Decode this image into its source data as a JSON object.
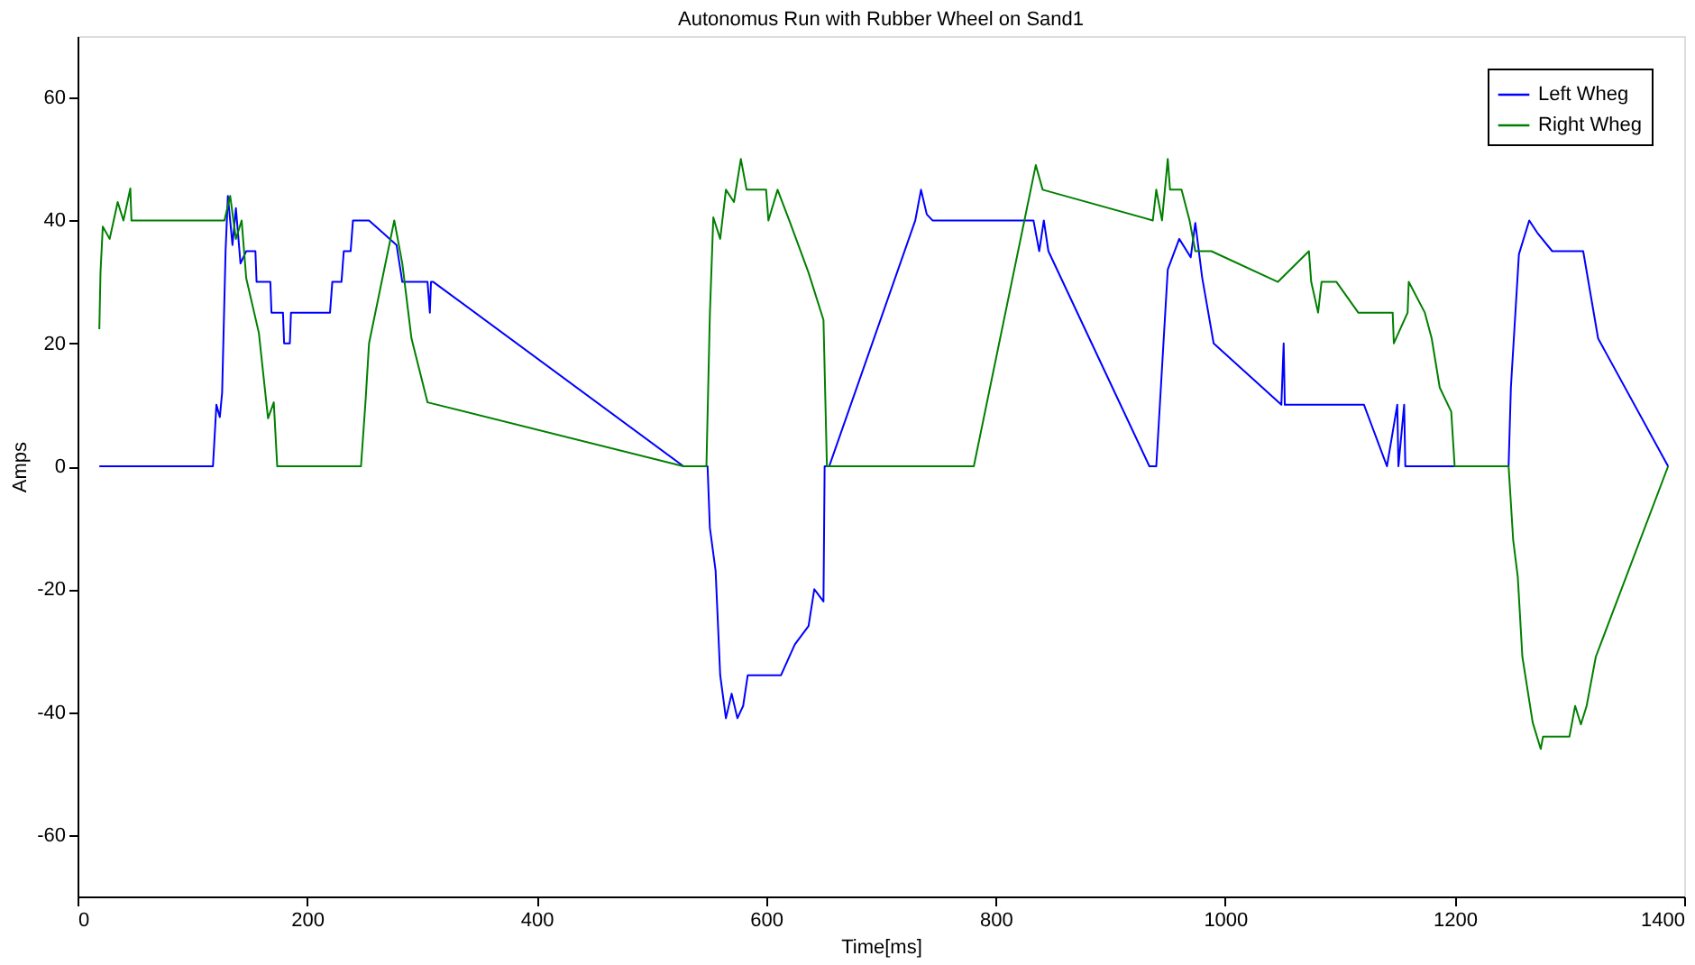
{
  "chart_data": {
    "type": "line",
    "title": "Autonomus Run with Rubber Wheel on Sand1",
    "xlabel": "Time[ms]",
    "ylabel": "Amps",
    "xlim": [
      0,
      1400
    ],
    "ylim": [
      -70,
      70
    ],
    "xticks": [
      0,
      200,
      400,
      600,
      800,
      1000,
      1200,
      1400
    ],
    "yticks": [
      -60,
      -40,
      -20,
      0,
      20,
      40,
      60
    ],
    "grid": false,
    "legend": "top right",
    "marker": "none",
    "line_style": "solid",
    "series": [
      {
        "name": "Left Wheg",
        "color": "#0000ff",
        "x": [
          19,
          118,
          121,
          124,
          126,
          129,
          131,
          135,
          138,
          142,
          147,
          155,
          156,
          168,
          169,
          179,
          180,
          185,
          186,
          220,
          222,
          230,
          232,
          238,
          240,
          254,
          278,
          283,
          305,
          307,
          308,
          310,
          528,
          549,
          551,
          556,
          560,
          565,
          570,
          575,
          580,
          584,
          613,
          625,
          637,
          642,
          650,
          651,
          655,
          730,
          735,
          740,
          745,
          833,
          838,
          842,
          846,
          934,
          940,
          950,
          960,
          970,
          974,
          980,
          990,
          1049,
          1051,
          1052,
          1054,
          1121,
          1141,
          1150,
          1151,
          1156,
          1157,
          1247,
          1249,
          1256,
          1265,
          1272,
          1285,
          1312,
          1325,
          1386
        ],
        "values": [
          0,
          0,
          10,
          8,
          12,
          35,
          44,
          36,
          42,
          33,
          35,
          35,
          30,
          30,
          25,
          25,
          20,
          20,
          25,
          25,
          30,
          30,
          35,
          35,
          40,
          40,
          36,
          30,
          30,
          25,
          30,
          30,
          0,
          0,
          -10,
          -17,
          -34,
          -41,
          -37,
          -41,
          -39,
          -34,
          -34,
          -29,
          -26,
          -20,
          -22,
          0,
          0,
          40,
          45,
          41,
          40,
          40,
          35,
          40,
          35,
          0,
          0,
          32,
          37,
          34,
          39.6,
          30.7,
          20,
          10,
          20,
          10,
          10,
          10,
          0,
          10,
          0,
          10,
          0,
          0,
          12.8,
          34.5,
          40,
          38,
          35,
          35,
          20.8,
          0
        ]
      },
      {
        "name": "Right Wheg",
        "color": "#008000",
        "x": [
          19,
          20,
          22,
          28,
          35,
          40,
          46,
          47,
          128,
          133,
          138,
          143,
          147,
          158,
          166,
          171,
          174,
          247,
          251,
          254,
          276,
          283,
          291,
          305,
          528,
          548,
          551,
          554,
          560,
          565,
          572,
          578,
          583,
          600,
          602,
          610,
          621,
          637,
          650,
          653,
          781,
          835,
          841,
          937,
          940,
          945,
          950,
          952,
          962,
          969,
          974,
          988,
          1046,
          1073,
          1075,
          1081,
          1084,
          1097,
          1116,
          1146,
          1147,
          1159,
          1160,
          1174,
          1180,
          1187,
          1197,
          1200,
          1247,
          1251,
          1255,
          1259,
          1268,
          1275,
          1277,
          1300,
          1305,
          1310,
          1315,
          1323,
          1386
        ],
        "values": [
          22.3,
          31.5,
          39,
          37,
          43,
          40,
          45.2,
          40,
          40,
          44,
          37,
          40,
          30.6,
          21.7,
          7.8,
          10.4,
          0,
          0,
          10.7,
          20,
          40,
          33,
          20.8,
          10.4,
          0,
          0,
          24.7,
          40.5,
          37,
          45,
          43,
          50,
          45,
          45,
          40,
          45,
          39.6,
          31.5,
          23.8,
          0,
          0,
          49,
          45,
          40,
          45,
          40,
          50,
          45,
          45,
          40,
          35,
          35,
          30,
          35,
          30,
          25,
          30,
          30,
          25,
          25,
          20,
          25,
          30,
          25,
          20.8,
          12.8,
          8.9,
          0,
          0,
          -12,
          -18,
          -31,
          -41.7,
          -46,
          -44,
          -44,
          -39,
          -42,
          -39,
          -31,
          0
        ]
      }
    ]
  }
}
